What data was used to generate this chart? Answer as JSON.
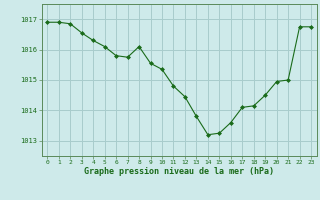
{
  "x": [
    0,
    1,
    2,
    3,
    4,
    5,
    6,
    7,
    8,
    9,
    10,
    11,
    12,
    13,
    14,
    15,
    16,
    17,
    18,
    19,
    20,
    21,
    22,
    23
  ],
  "y": [
    1016.9,
    1016.9,
    1016.85,
    1016.55,
    1016.3,
    1016.1,
    1015.8,
    1015.75,
    1016.1,
    1015.55,
    1015.35,
    1014.8,
    1014.45,
    1013.8,
    1013.2,
    1013.25,
    1013.6,
    1014.1,
    1014.15,
    1014.5,
    1014.95,
    1015.0,
    1016.75,
    1016.75
  ],
  "line_color": "#1a6b1a",
  "marker": "D",
  "marker_size": 2.0,
  "bg_color": "#ceeaea",
  "grid_color": "#a8cccc",
  "xlabel": "Graphe pression niveau de la mer (hPa)",
  "xlabel_color": "#1a6b1a",
  "tick_color": "#1a6b1a",
  "spine_color": "#5a8a5a",
  "ylim": [
    1012.5,
    1017.5
  ],
  "yticks": [
    1013,
    1014,
    1015,
    1016,
    1017
  ],
  "xticks": [
    0,
    1,
    2,
    3,
    4,
    5,
    6,
    7,
    8,
    9,
    10,
    11,
    12,
    13,
    14,
    15,
    16,
    17,
    18,
    19,
    20,
    21,
    22,
    23
  ]
}
